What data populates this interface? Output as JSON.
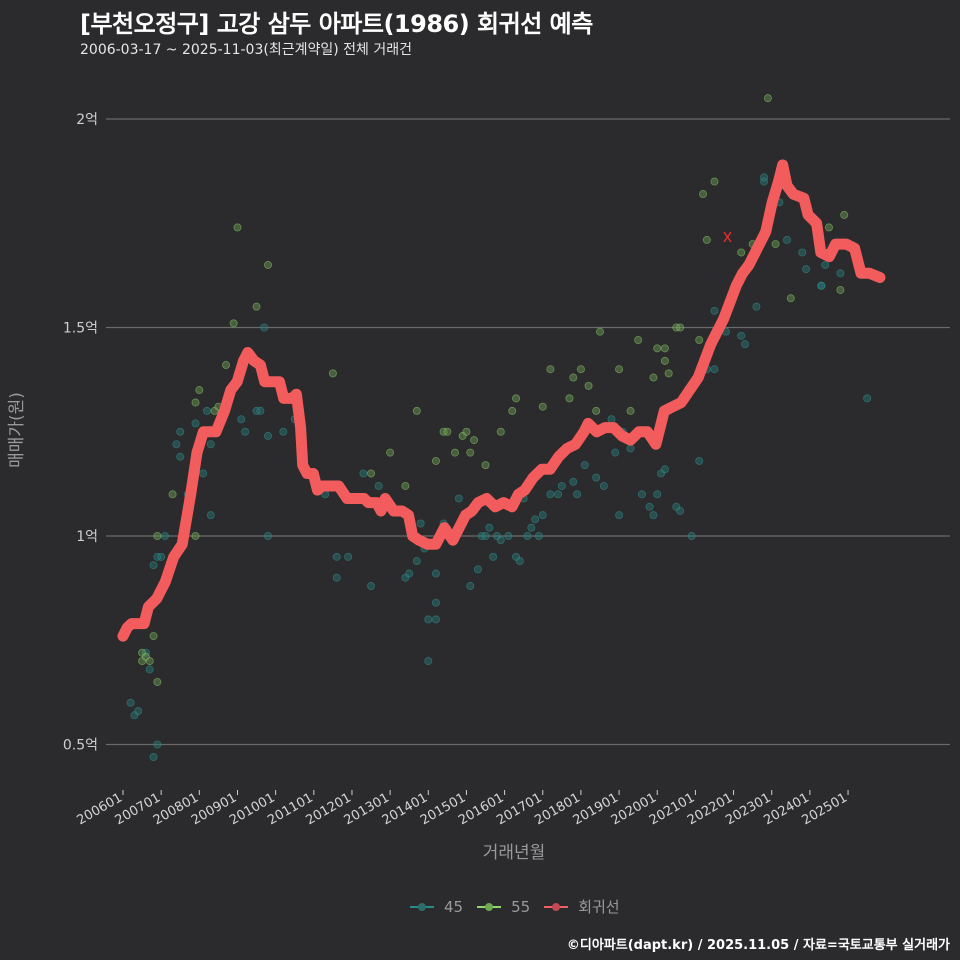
{
  "header": {
    "title": "[부천오정구] 고강 삼두 아파트(1986) 회귀선 예측",
    "subtitle": "2006-03-17 ~ 2025-11-03(최근계약일) 전체 거래건"
  },
  "axes": {
    "y_title": "매매가(원)",
    "x_title": "거래년월",
    "y_ticks": [
      "2억",
      "1.5억",
      "1억",
      "0.5억"
    ],
    "x_ticks": [
      "200601",
      "200701",
      "200801",
      "200901",
      "201001",
      "201101",
      "201201",
      "201301",
      "201401",
      "201501",
      "201601",
      "201701",
      "201801",
      "201901",
      "202001",
      "202101",
      "202201",
      "202301",
      "202401",
      "202501"
    ]
  },
  "legend": {
    "items": [
      {
        "label": "45",
        "color": "#2a8a88"
      },
      {
        "label": "55",
        "color": "#8fd86a"
      },
      {
        "label": "회귀선",
        "color": "#f06060"
      }
    ]
  },
  "footer": {
    "credit": "©디아파트(dapt.kr) / 2025.11.05 / 자료=국토교통부 실거래가"
  },
  "colors": {
    "background": "#2b2a2c",
    "grid": "#6a6a6a",
    "series_45": "#2a8a88",
    "series_55": "#8fd86a",
    "regression": "#f25c5c"
  },
  "chart_data": {
    "type": "scatter",
    "title": "[부천오정구] 고강 삼두 아파트(1986) 회귀선 예측",
    "subtitle": "2006-03-17 ~ 2025-11-03(최근계약일) 전체 거래건",
    "xlabel": "거래년월",
    "ylabel": "매매가(원)",
    "ylim": [
      0.4,
      2.1
    ],
    "y_unit": "억",
    "y_ticks": [
      0.5,
      1.0,
      1.5,
      2.0
    ],
    "x_range": [
      "200601",
      "202511"
    ],
    "grid": "horizontal major only",
    "legend_position": "bottom",
    "series": [
      {
        "name": "45",
        "type": "scatter",
        "points": [
          [
            2006.2,
            0.6
          ],
          [
            2006.3,
            0.57
          ],
          [
            2006.4,
            0.58
          ],
          [
            2006.6,
            0.72
          ],
          [
            2006.7,
            0.68
          ],
          [
            2006.8,
            0.47
          ],
          [
            2006.9,
            0.5
          ],
          [
            2006.8,
            0.93
          ],
          [
            2006.9,
            0.95
          ],
          [
            2007.0,
            0.95
          ],
          [
            2007.1,
            1.0
          ],
          [
            2007.4,
            1.22
          ],
          [
            2007.5,
            1.19
          ],
          [
            2007.5,
            1.25
          ],
          [
            2007.7,
            1.1
          ],
          [
            2007.9,
            1.27
          ],
          [
            2008.1,
            1.15
          ],
          [
            2008.2,
            1.3
          ],
          [
            2008.3,
            1.05
          ],
          [
            2008.3,
            1.22
          ],
          [
            2008.7,
            1.32
          ],
          [
            2009.1,
            1.28
          ],
          [
            2009.2,
            1.25
          ],
          [
            2009.5,
            1.3
          ],
          [
            2009.6,
            1.3
          ],
          [
            2009.7,
            1.5
          ],
          [
            2009.8,
            1.24
          ],
          [
            2009.8,
            1.0
          ],
          [
            2010.2,
            1.25
          ],
          [
            2010.5,
            1.28
          ],
          [
            2010.9,
            1.15
          ],
          [
            2011.3,
            1.1
          ],
          [
            2011.6,
            0.95
          ],
          [
            2011.6,
            0.9
          ],
          [
            2011.9,
            0.95
          ],
          [
            2012.3,
            1.15
          ],
          [
            2012.5,
            0.88
          ],
          [
            2012.7,
            1.12
          ],
          [
            2012.9,
            1.09
          ],
          [
            2013.4,
            0.9
          ],
          [
            2013.5,
            0.91
          ],
          [
            2013.7,
            0.94
          ],
          [
            2013.8,
            1.03
          ],
          [
            2013.9,
            0.97
          ],
          [
            2014.0,
            0.8
          ],
          [
            2014.0,
            0.7
          ],
          [
            2014.2,
            0.8
          ],
          [
            2014.2,
            0.84
          ],
          [
            2014.2,
            0.91
          ],
          [
            2014.4,
            1.03
          ],
          [
            2014.8,
            1.09
          ],
          [
            2015.1,
            0.88
          ],
          [
            2015.3,
            0.92
          ],
          [
            2015.4,
            1.0
          ],
          [
            2015.5,
            1.0
          ],
          [
            2015.6,
            1.02
          ],
          [
            2015.7,
            0.95
          ],
          [
            2015.8,
            1.0
          ],
          [
            2015.9,
            0.99
          ],
          [
            2016.1,
            1.0
          ],
          [
            2016.3,
            0.95
          ],
          [
            2016.4,
            0.94
          ],
          [
            2016.5,
            1.09
          ],
          [
            2016.6,
            1.0
          ],
          [
            2016.7,
            1.02
          ],
          [
            2016.8,
            1.04
          ],
          [
            2016.9,
            1.0
          ],
          [
            2017.0,
            1.05
          ],
          [
            2017.2,
            1.1
          ],
          [
            2017.4,
            1.1
          ],
          [
            2017.5,
            1.12
          ],
          [
            2017.8,
            1.13
          ],
          [
            2017.9,
            1.1
          ],
          [
            2018.1,
            1.17
          ],
          [
            2018.4,
            1.14
          ],
          [
            2018.6,
            1.12
          ],
          [
            2018.8,
            1.28
          ],
          [
            2018.9,
            1.2
          ],
          [
            2019.0,
            1.05
          ],
          [
            2019.1,
            1.25
          ],
          [
            2019.3,
            1.21
          ],
          [
            2019.6,
            1.1
          ],
          [
            2019.8,
            1.07
          ],
          [
            2019.9,
            1.05
          ],
          [
            2020.0,
            1.1
          ],
          [
            2020.1,
            1.15
          ],
          [
            2020.2,
            1.16
          ],
          [
            2020.3,
            1.3
          ],
          [
            2020.5,
            1.07
          ],
          [
            2020.6,
            1.06
          ],
          [
            2020.9,
            1.0
          ],
          [
            2021.1,
            1.18
          ],
          [
            2021.3,
            1.4
          ],
          [
            2021.5,
            1.4
          ],
          [
            2021.5,
            1.54
          ],
          [
            2021.8,
            1.49
          ],
          [
            2022.2,
            1.48
          ],
          [
            2022.3,
            1.46
          ],
          [
            2022.6,
            1.55
          ],
          [
            2022.8,
            1.85
          ],
          [
            2022.8,
            1.86
          ],
          [
            2023.2,
            1.8
          ],
          [
            2023.4,
            1.71
          ],
          [
            2023.8,
            1.68
          ],
          [
            2023.9,
            1.64
          ],
          [
            2024.3,
            1.6
          ],
          [
            2024.3,
            1.6
          ],
          [
            2024.4,
            1.65
          ],
          [
            2024.8,
            1.63
          ],
          [
            2025.5,
            1.33
          ]
        ]
      },
      {
        "name": "55",
        "type": "scatter",
        "points": [
          [
            2006.5,
            0.72
          ],
          [
            2006.5,
            0.7
          ],
          [
            2006.6,
            0.71
          ],
          [
            2006.7,
            0.7
          ],
          [
            2006.8,
            0.76
          ],
          [
            2006.9,
            0.65
          ],
          [
            2006.9,
            1.0
          ],
          [
            2007.3,
            1.1
          ],
          [
            2007.9,
            1.0
          ],
          [
            2007.9,
            1.32
          ],
          [
            2008.0,
            1.35
          ],
          [
            2008.4,
            1.3
          ],
          [
            2008.5,
            1.31
          ],
          [
            2008.7,
            1.41
          ],
          [
            2008.9,
            1.51
          ],
          [
            2009.0,
            1.74
          ],
          [
            2009.5,
            1.55
          ],
          [
            2009.8,
            1.65
          ],
          [
            2011.5,
            1.39
          ],
          [
            2012.5,
            1.15
          ],
          [
            2013.0,
            1.2
          ],
          [
            2013.4,
            1.12
          ],
          [
            2013.7,
            1.3
          ],
          [
            2014.2,
            1.18
          ],
          [
            2014.4,
            1.25
          ],
          [
            2014.5,
            1.25
          ],
          [
            2014.7,
            1.2
          ],
          [
            2014.9,
            1.24
          ],
          [
            2015.0,
            1.25
          ],
          [
            2015.1,
            1.2
          ],
          [
            2015.2,
            1.23
          ],
          [
            2015.5,
            1.17
          ],
          [
            2015.9,
            1.25
          ],
          [
            2016.2,
            1.3
          ],
          [
            2016.3,
            1.33
          ],
          [
            2017.0,
            1.31
          ],
          [
            2017.2,
            1.4
          ],
          [
            2017.7,
            1.33
          ],
          [
            2017.8,
            1.38
          ],
          [
            2018.0,
            1.4
          ],
          [
            2018.2,
            1.36
          ],
          [
            2018.4,
            1.3
          ],
          [
            2018.5,
            1.49
          ],
          [
            2019.0,
            1.4
          ],
          [
            2019.3,
            1.3
          ],
          [
            2019.5,
            1.47
          ],
          [
            2019.9,
            1.38
          ],
          [
            2020.0,
            1.45
          ],
          [
            2020.2,
            1.42
          ],
          [
            2020.2,
            1.45
          ],
          [
            2020.3,
            1.39
          ],
          [
            2020.5,
            1.5
          ],
          [
            2020.6,
            1.5
          ],
          [
            2021.1,
            1.47
          ],
          [
            2021.2,
            1.82
          ],
          [
            2021.3,
            1.71
          ],
          [
            2021.5,
            1.85
          ],
          [
            2022.2,
            1.68
          ],
          [
            2022.5,
            1.7
          ],
          [
            2022.9,
            2.05
          ],
          [
            2023.1,
            1.7
          ],
          [
            2023.5,
            1.57
          ],
          [
            2024.5,
            1.74
          ],
          [
            2024.8,
            1.59
          ],
          [
            2024.9,
            1.77
          ]
        ]
      },
      {
        "name": "회귀선",
        "type": "line",
        "points": [
          [
            2006.0,
            0.76
          ],
          [
            2006.1,
            0.78
          ],
          [
            2006.2,
            0.79
          ],
          [
            2006.5,
            0.79
          ],
          [
            2006.6,
            0.83
          ],
          [
            2006.8,
            0.85
          ],
          [
            2007.0,
            0.89
          ],
          [
            2007.2,
            0.95
          ],
          [
            2007.4,
            0.98
          ],
          [
            2007.6,
            1.1
          ],
          [
            2007.75,
            1.2
          ],
          [
            2007.9,
            1.25
          ],
          [
            2008.2,
            1.25
          ],
          [
            2008.4,
            1.3
          ],
          [
            2008.55,
            1.35
          ],
          [
            2008.7,
            1.37
          ],
          [
            2008.85,
            1.42
          ],
          [
            2008.95,
            1.44
          ],
          [
            2009.1,
            1.42
          ],
          [
            2009.25,
            1.41
          ],
          [
            2009.35,
            1.37
          ],
          [
            2009.7,
            1.37
          ],
          [
            2009.8,
            1.33
          ],
          [
            2010.0,
            1.33
          ],
          [
            2010.1,
            1.34
          ],
          [
            2010.2,
            1.26
          ],
          [
            2010.25,
            1.17
          ],
          [
            2010.35,
            1.15
          ],
          [
            2010.5,
            1.15
          ],
          [
            2010.6,
            1.11
          ],
          [
            2010.7,
            1.12
          ],
          [
            2011.1,
            1.12
          ],
          [
            2011.3,
            1.09
          ],
          [
            2011.7,
            1.09
          ],
          [
            2011.8,
            1.08
          ],
          [
            2012.0,
            1.08
          ],
          [
            2012.1,
            1.06
          ],
          [
            2012.2,
            1.09
          ],
          [
            2012.4,
            1.06
          ],
          [
            2012.6,
            1.06
          ],
          [
            2012.75,
            1.05
          ],
          [
            2012.85,
            1.0
          ],
          [
            2013.0,
            0.99
          ],
          [
            2013.2,
            0.98
          ],
          [
            2013.4,
            0.98
          ],
          [
            2013.6,
            1.02
          ],
          [
            2013.8,
            0.99
          ],
          [
            2014.0,
            1.03
          ],
          [
            2014.1,
            1.05
          ],
          [
            2014.25,
            1.06
          ],
          [
            2014.4,
            1.08
          ],
          [
            2014.6,
            1.09
          ],
          [
            2014.8,
            1.07
          ],
          [
            2015.0,
            1.08
          ],
          [
            2015.2,
            1.07
          ],
          [
            2015.35,
            1.1
          ],
          [
            2015.5,
            1.11
          ],
          [
            2015.7,
            1.14
          ],
          [
            2015.9,
            1.16
          ],
          [
            2016.1,
            1.16
          ],
          [
            2016.3,
            1.19
          ],
          [
            2016.5,
            1.21
          ],
          [
            2016.7,
            1.22
          ],
          [
            2016.9,
            1.25
          ],
          [
            2017.0,
            1.27
          ],
          [
            2017.2,
            1.25
          ],
          [
            2017.4,
            1.26
          ],
          [
            2017.6,
            1.26
          ],
          [
            2017.8,
            1.24
          ],
          [
            2018.0,
            1.23
          ],
          [
            2018.2,
            1.25
          ],
          [
            2018.4,
            1.25
          ],
          [
            2018.6,
            1.22
          ],
          [
            2018.8,
            1.3
          ],
          [
            2019.0,
            1.31
          ],
          [
            2019.2,
            1.32
          ],
          [
            2019.4,
            1.35
          ],
          [
            2019.6,
            1.38
          ],
          [
            2019.75,
            1.42
          ],
          [
            2019.9,
            1.46
          ],
          [
            2020.1,
            1.5
          ],
          [
            2020.2,
            1.52
          ],
          [
            2020.35,
            1.56
          ],
          [
            2020.5,
            1.6
          ],
          [
            2020.65,
            1.63
          ],
          [
            2020.8,
            1.65
          ],
          [
            2021.0,
            1.69
          ],
          [
            2021.2,
            1.73
          ],
          [
            2021.35,
            1.8
          ],
          [
            2021.5,
            1.85
          ],
          [
            2021.6,
            1.89
          ],
          [
            2021.7,
            1.84
          ],
          [
            2021.85,
            1.82
          ],
          [
            2022.1,
            1.81
          ],
          [
            2022.2,
            1.77
          ],
          [
            2022.4,
            1.75
          ],
          [
            2022.5,
            1.68
          ],
          [
            2022.7,
            1.67
          ],
          [
            2022.85,
            1.7
          ],
          [
            2023.1,
            1.7
          ],
          [
            2023.3,
            1.69
          ],
          [
            2023.45,
            1.63
          ],
          [
            2023.65,
            1.63
          ],
          [
            2023.9,
            1.62
          ]
        ]
      }
    ]
  }
}
